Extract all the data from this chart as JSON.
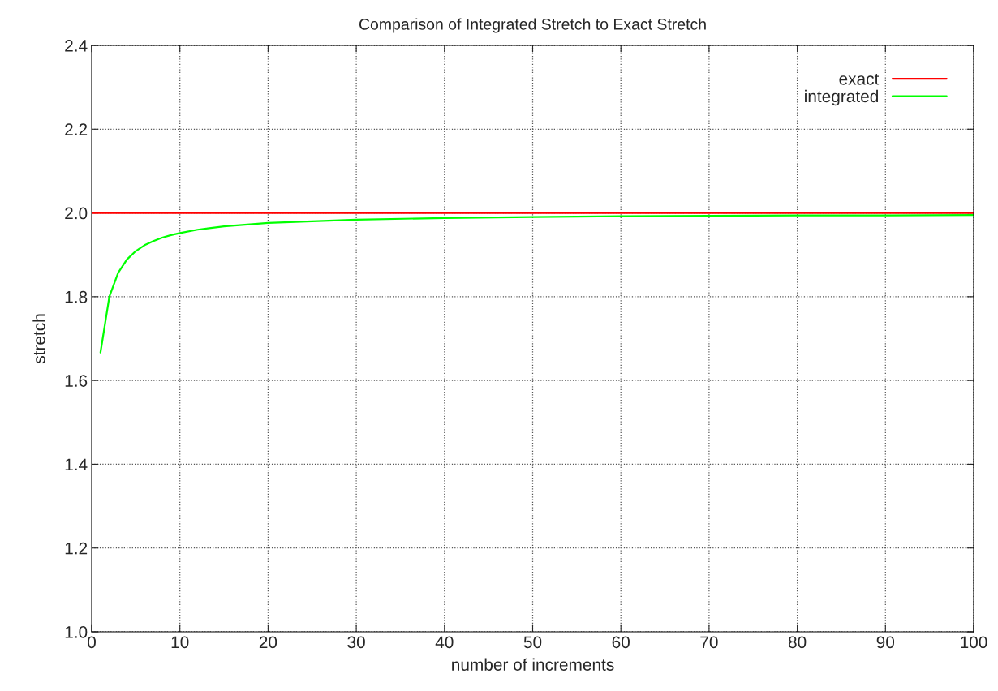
{
  "chart_data": {
    "type": "line",
    "title": "Comparison of Integrated Stretch to Exact Stretch",
    "xlabel": "number of increments",
    "ylabel": "stretch",
    "series": [
      {
        "name": "exact",
        "color": "#ff0000",
        "x": [
          0,
          100
        ],
        "values": [
          2.0,
          2.0
        ]
      },
      {
        "name": "integrated",
        "color": "#00ff00",
        "x": [
          1,
          2,
          3,
          4,
          5,
          6,
          7,
          8,
          9,
          10,
          12,
          15,
          20,
          25,
          30,
          40,
          50,
          60,
          70,
          80,
          90,
          100
        ],
        "values": [
          1.667,
          1.8,
          1.857,
          1.889,
          1.909,
          1.923,
          1.933,
          1.941,
          1.947,
          1.952,
          1.96,
          1.968,
          1.976,
          1.98,
          1.984,
          1.988,
          1.99,
          1.992,
          1.993,
          1.994,
          1.994,
          1.995
        ]
      }
    ],
    "xlim": [
      0,
      100
    ],
    "xticks": [
      0,
      10,
      20,
      30,
      40,
      50,
      60,
      70,
      80,
      90,
      100
    ],
    "ylim": [
      1.0,
      2.4
    ],
    "yticks": [
      {
        "value": 1.0,
        "label": "1.0"
      },
      1.2,
      1.4,
      1.6,
      1.8,
      {
        "value": 2.0,
        "label": "2.0"
      },
      2.2,
      2.4
    ],
    "grid": true,
    "legend": "top right",
    "line_style": "solid",
    "marker": "none"
  }
}
